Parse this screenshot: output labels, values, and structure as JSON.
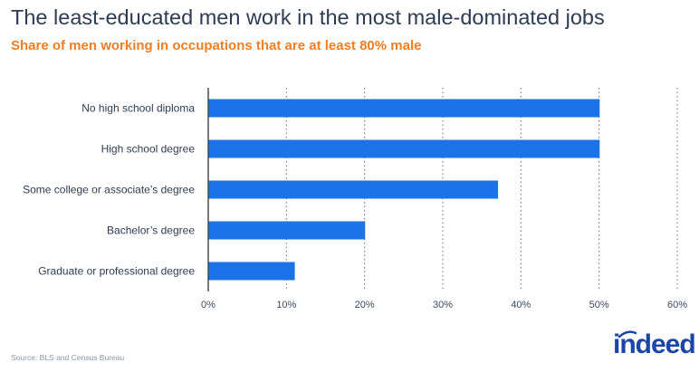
{
  "title": "The least-educated men work in the most male-dominated jobs",
  "subtitle": "Share of men working in occupations that are at least 80% male",
  "source": "Source: BLS and Census Bureau",
  "logo_text": "indeed",
  "colors": {
    "bar": "#1a73e8",
    "title": "#2d3c52",
    "subtitle": "#f07e26",
    "logo": "#1b46a8"
  },
  "chart_data": {
    "type": "bar",
    "orientation": "horizontal",
    "categories": [
      "No high school diploma",
      "High school degree",
      "Some college or associate’s degree",
      "Bachelor’s degree",
      "Graduate or professional degree"
    ],
    "values": [
      50,
      50,
      37,
      20,
      11
    ],
    "xlim": [
      0,
      60
    ],
    "xticks": [
      "0%",
      "10%",
      "20%",
      "30%",
      "40%",
      "50%",
      "60%"
    ],
    "grid": true,
    "title": "The least-educated men work in the most male-dominated jobs",
    "subtitle": "Share of men working in occupations that are at least 80% male"
  }
}
